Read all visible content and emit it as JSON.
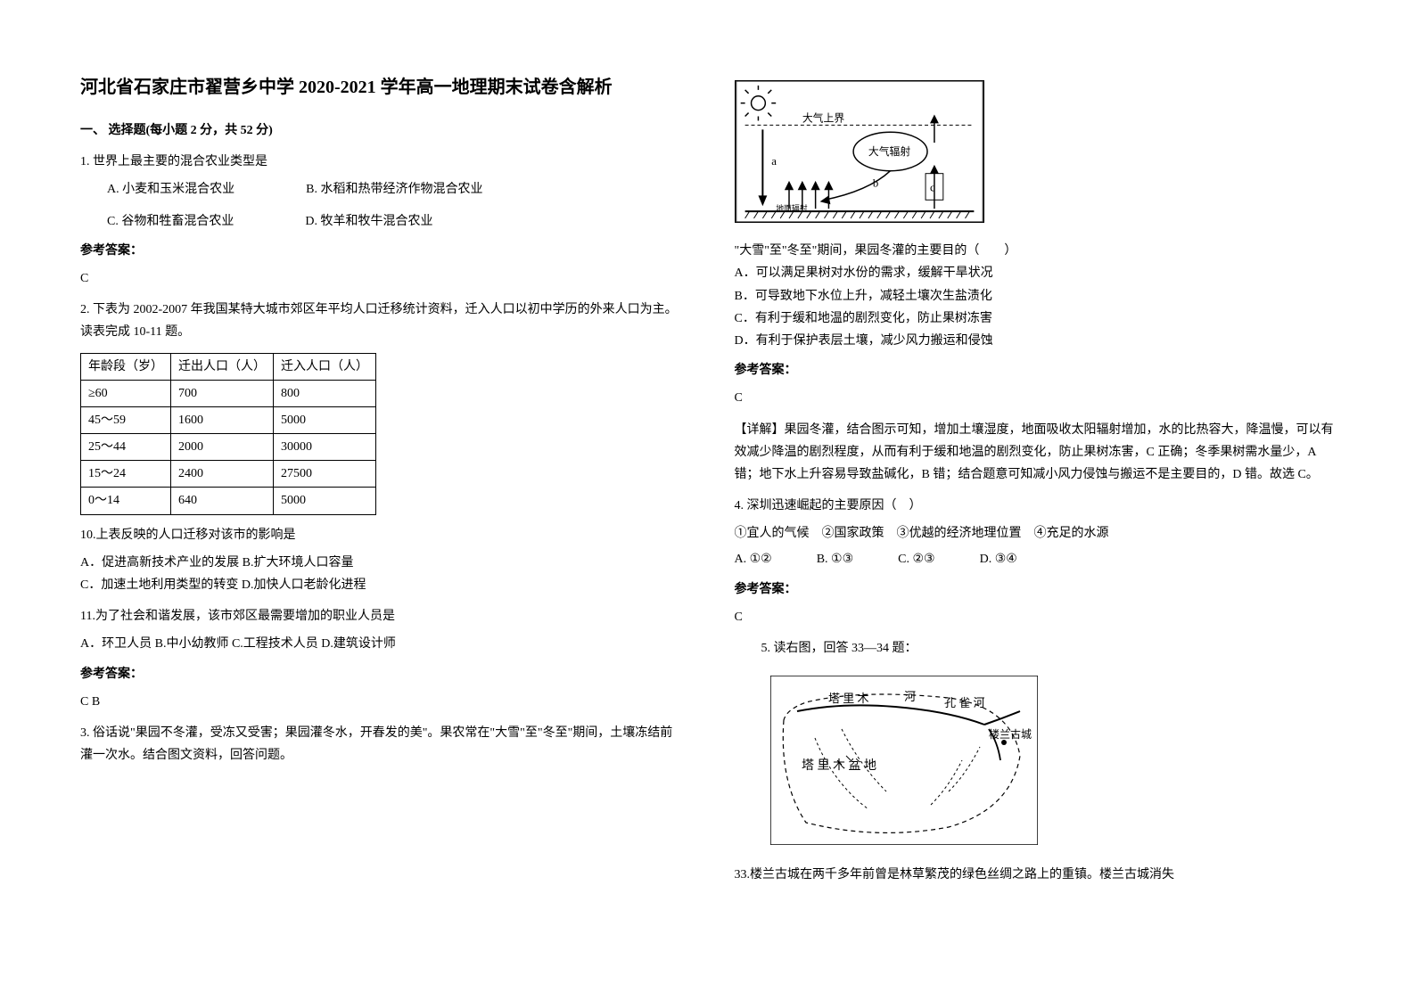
{
  "title": "河北省石家庄市翟营乡中学 2020-2021 学年高一地理期末试卷含解析",
  "sectionHeader": "一、 选择题(每小题 2 分，共 52 分)",
  "q1": {
    "text": "1. 世界上最主要的混合农业类型是",
    "optA": "A. 小麦和玉米混合农业",
    "optB": "B. 水稻和热带经济作物混合农业",
    "optC": "C. 谷物和牲畜混合农业",
    "optD": "D. 牧羊和牧牛混合农业"
  },
  "answerLabel": "参考答案：",
  "q1Answer": "C",
  "q2": {
    "text": "2. 下表为 2002-2007 年我国某特大城市郊区年平均人口迁移统计资料，迁入人口以初中学历的外来人口为主。读表完成 10-11 题。",
    "table": {
      "headers": [
        "年龄段（岁）",
        "迁出人口（人）",
        "迁入人口（人）"
      ],
      "rows": [
        [
          "≥60",
          "700",
          "800"
        ],
        [
          "45～59",
          "1600",
          "5000"
        ],
        [
          "25～44",
          "2000",
          "30000"
        ],
        [
          "15～24",
          "2400",
          "27500"
        ],
        [
          "0～14",
          "640",
          "5000"
        ]
      ]
    },
    "sub10": "10.上表反映的人口迁移对该市的影响是",
    "sub10A": "A．促进高新技术产业的发展  B.扩大环境人口容量",
    "sub10C": "C．加速土地利用类型的转变  D.加快人口老龄化进程",
    "sub11": "11.为了社会和谐发展，该市郊区最需要增加的职业人员是",
    "sub11opts": "A．环卫人员     B.中小幼教师     C.工程技术人员     D.建筑设计师"
  },
  "q2Answer": "C  B",
  "q3": {
    "text": "3. 俗话说\"果园不冬灌，受冻又受害；果园灌冬水，开春发的美\"。果农常在\"大雪\"至\"冬至\"期间，土壤冻结前灌一次水。结合图文资料，回答问题。",
    "diagram": {
      "labels": {
        "top": "大气上界",
        "radiation": "大气辐射",
        "a": "a",
        "b": "b",
        "c": "c",
        "ground": "地面辐射"
      }
    },
    "stem": "\"大雪\"至\"冬至\"期间，果园冬灌的主要目的（　　）",
    "optA": "A．可以满足果树对水份的需求，缓解干旱状况",
    "optB": "B．可导致地下水位上升，减轻土壤次生盐渍化",
    "optC": "C．有利于缓和地温的剧烈变化，防止果树冻害",
    "optD": "D．有利于保护表层土壤，减少风力搬运和侵蚀"
  },
  "q3Answer": "C",
  "q3Explain": "【详解】果园冬灌，结合图示可知，增加土壤湿度，地面吸收太阳辐射增加，水的比热容大，降温慢，可以有效减少降温的剧烈程度，从而有利于缓和地温的剧烈变化，防止果树冻害，C 正确；冬季果树需水量少，A 错；地下水上升容易导致盐碱化，B 错；结合题意可知减小风力侵蚀与搬运不是主要目的，D 错。故选 C。",
  "q4": {
    "text": "4. 深圳迅速崛起的主要原因（　）",
    "choices": "①宜人的气候　②国家政策　③优越的经济地理位置　④充足的水源",
    "optA": "A. ①②",
    "optB": "B. ①③",
    "optC": "C. ②③",
    "optD": "D. ③④"
  },
  "q4Answer": "C",
  "q5": {
    "text": "5. 读右图，回答 33—34 题：",
    "mapLabels": {
      "river1": "塔 里 木",
      "river1b": "河",
      "river2": "孔 雀 河",
      "basin": "塔    里  木  盆   地",
      "city": "楼兰古城"
    },
    "sub33": "33.楼兰古城在两千多年前曾是林草繁茂的绿色丝绸之路上的重镇。楼兰古城消失"
  },
  "colors": {
    "text": "#000000",
    "background": "#ffffff",
    "border": "#000000"
  }
}
